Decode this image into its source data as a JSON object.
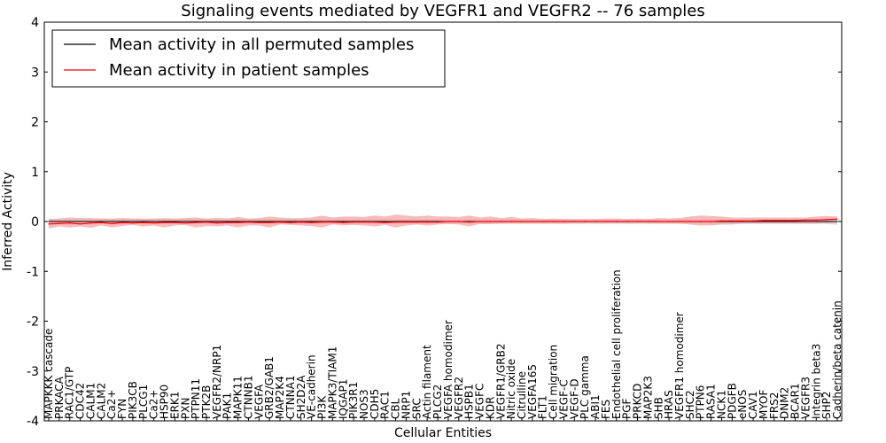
{
  "chart_data": {
    "type": "line",
    "title": "Signaling events mediated by VEGFR1 and VEGFR2 -- 76 samples",
    "xlabel": "Cellular Entities",
    "ylabel": "Inferred Activity",
    "ylim": [
      -4,
      4
    ],
    "yticks": [
      "-4",
      "-3",
      "-2",
      "-1",
      "0",
      "1",
      "2",
      "3",
      "4"
    ],
    "legend": {
      "placement": "top-left",
      "entries": [
        {
          "label": "Mean activity in all permuted samples",
          "color": "#000000"
        },
        {
          "label": "Mean activity in patient samples",
          "color": "#ff0000"
        }
      ]
    },
    "colors": {
      "patient": "#ff0000",
      "patient_band": "#f4a6a6",
      "permuted": "#000000",
      "permuted_band": "#c8c8d8"
    },
    "categories": [
      "MAPKKK cascade",
      "PRKACA",
      "RAC1/GTP",
      "CDC42",
      "CALM1",
      "CALM2",
      "Ca2+",
      "FYN",
      "PIK3CB",
      "PLCG1",
      "Ca2+",
      "HSP90",
      "ERK1",
      "PXN",
      "PTPN11",
      "PTK2B",
      "VEGFR2/NRP1",
      "PAK1",
      "MAPK11",
      "CTNNB1",
      "VEGFA",
      "GRB2/GAB1",
      "MAP2K4",
      "CTNNA1",
      "SH2D2A",
      "VE-cadherin",
      "PI3K",
      "MAPK3/TIAM1",
      "IQGAP1",
      "PIK3R1",
      "NOS3",
      "CDH5",
      "RAC1",
      "CBL",
      "NRP1",
      "SRC",
      "Actin filament",
      "PLCG2",
      "VEGFA homodimer",
      "VEGFR2",
      "HSPB1",
      "VEGFC",
      "KDR",
      "VEGFR1/GRB2",
      "Nitric oxide",
      "Citrulline",
      "VEGFA165",
      "FLT1",
      "Cell migration",
      "VEGF-C",
      "VEGF-D",
      "PLC gamma",
      "ABI1",
      "FES",
      "Endothelial cell proliferation",
      "PGF",
      "PRKCD",
      "MAP2K3",
      "SHB",
      "HRAS",
      "VEGFR1 homodimer",
      "SHC2",
      "PTPN6",
      "RASA1",
      "NCK1",
      "PDGFB",
      "eNOS",
      "CAV1",
      "MYOF",
      "FRS2",
      "DNM2",
      "BCAR1",
      "VEGFR3",
      "Integrin beta3",
      "SHP2",
      "Cadherin/beta catenin"
    ],
    "series": [
      {
        "name": "Mean activity in all permuted samples",
        "values": [
          0,
          0,
          0,
          0,
          0,
          0,
          0,
          0,
          0,
          0,
          0,
          0,
          0,
          0,
          0,
          0,
          0,
          0,
          0,
          0,
          0,
          0,
          0,
          0,
          0,
          0,
          0,
          0,
          0,
          0,
          0,
          0,
          0,
          0,
          0,
          0,
          0,
          0,
          0,
          0,
          0,
          0,
          0,
          0,
          0,
          0,
          0,
          0,
          0,
          0,
          0,
          0,
          0,
          0,
          0,
          0,
          0,
          0,
          0,
          0,
          0,
          0,
          0,
          0,
          0,
          0,
          0,
          0,
          0,
          0,
          0,
          0,
          0,
          0,
          0,
          0
        ],
        "lower": [
          -0.07,
          -0.06,
          -0.07,
          -0.06,
          -0.06,
          -0.05,
          -0.06,
          -0.06,
          -0.05,
          -0.06,
          -0.06,
          -0.05,
          -0.05,
          -0.06,
          -0.05,
          -0.05,
          -0.06,
          -0.05,
          -0.05,
          -0.05,
          -0.05,
          -0.05,
          -0.05,
          -0.05,
          -0.05,
          -0.05,
          -0.05,
          -0.05,
          -0.05,
          -0.05,
          -0.05,
          -0.05,
          -0.05,
          -0.05,
          -0.05,
          -0.05,
          -0.05,
          -0.05,
          -0.05,
          -0.05,
          -0.05,
          -0.05,
          -0.05,
          -0.05,
          -0.05,
          -0.05,
          -0.05,
          -0.05,
          -0.05,
          -0.05,
          -0.05,
          -0.05,
          -0.05,
          -0.05,
          -0.05,
          -0.05,
          -0.05,
          -0.05,
          -0.05,
          -0.05,
          -0.05,
          -0.05,
          -0.05,
          -0.05,
          -0.05,
          -0.05,
          -0.05,
          -0.05,
          -0.05,
          -0.05,
          -0.05,
          -0.05,
          -0.05,
          -0.05,
          -0.05,
          -0.07
        ],
        "upper": [
          0.05,
          0.05,
          0.05,
          0.05,
          0.05,
          0.05,
          0.05,
          0.05,
          0.05,
          0.05,
          0.05,
          0.05,
          0.05,
          0.05,
          0.05,
          0.05,
          0.05,
          0.05,
          0.05,
          0.05,
          0.05,
          0.05,
          0.05,
          0.05,
          0.05,
          0.05,
          0.05,
          0.05,
          0.05,
          0.05,
          0.05,
          0.05,
          0.05,
          0.05,
          0.05,
          0.05,
          0.05,
          0.05,
          0.05,
          0.05,
          0.05,
          0.05,
          0.05,
          0.05,
          0.05,
          0.05,
          0.05,
          0.05,
          0.05,
          0.05,
          0.05,
          0.05,
          0.05,
          0.05,
          0.05,
          0.05,
          0.05,
          0.05,
          0.05,
          0.05,
          0.05,
          0.05,
          0.05,
          0.05,
          0.05,
          0.05,
          0.05,
          0.05,
          0.05,
          0.05,
          0.05,
          0.05,
          0.05,
          0.05,
          0.05,
          0.06
        ]
      },
      {
        "name": "Mean activity in patient samples",
        "values": [
          -0.05,
          -0.04,
          -0.03,
          -0.05,
          -0.03,
          -0.02,
          -0.04,
          -0.02,
          -0.03,
          -0.02,
          -0.03,
          -0.02,
          -0.02,
          -0.03,
          -0.02,
          -0.01,
          -0.03,
          -0.02,
          -0.02,
          -0.01,
          -0.02,
          -0.02,
          -0.01,
          -0.02,
          -0.01,
          -0.02,
          -0.01,
          -0.01,
          -0.02,
          -0.01,
          -0.01,
          -0.01,
          -0.02,
          -0.01,
          -0.01,
          -0.01,
          -0.01,
          -0.01,
          0.0,
          0.0,
          -0.01,
          0.0,
          0.0,
          0.0,
          0.0,
          0.0,
          0.0,
          0.0,
          0.0,
          0.0,
          0.0,
          0.0,
          0.0,
          0.0,
          0.0,
          0.0,
          0.0,
          0.0,
          0.0,
          0.0,
          0.0,
          0.0,
          0.0,
          0.0,
          0.01,
          0.01,
          0.01,
          0.01,
          0.02,
          0.02,
          0.02,
          0.02,
          0.03,
          0.03,
          0.04,
          0.05
        ],
        "lower": [
          -0.14,
          -0.1,
          -0.12,
          -0.1,
          -0.13,
          -0.08,
          -0.12,
          -0.09,
          -0.07,
          -0.1,
          -0.08,
          -0.12,
          -0.08,
          -0.07,
          -0.12,
          -0.09,
          -0.1,
          -0.08,
          -0.12,
          -0.08,
          -0.08,
          -0.12,
          -0.06,
          -0.07,
          -0.08,
          -0.09,
          -0.12,
          -0.06,
          -0.08,
          -0.07,
          -0.08,
          -0.1,
          -0.07,
          -0.12,
          -0.08,
          -0.06,
          -0.08,
          -0.06,
          -0.05,
          -0.06,
          -0.1,
          -0.05,
          -0.05,
          -0.04,
          -0.04,
          -0.04,
          -0.04,
          -0.04,
          -0.04,
          -0.04,
          -0.03,
          -0.03,
          -0.03,
          -0.03,
          -0.03,
          -0.03,
          -0.03,
          -0.03,
          -0.04,
          -0.04,
          -0.04,
          -0.06,
          -0.08,
          -0.08,
          -0.06,
          -0.06,
          -0.04,
          -0.04,
          -0.04,
          -0.04,
          -0.04,
          -0.04,
          -0.04,
          -0.04,
          -0.03,
          -0.02
        ],
        "upper": [
          0.05,
          0.06,
          0.08,
          0.07,
          0.07,
          0.06,
          0.06,
          0.07,
          0.06,
          0.06,
          0.06,
          0.07,
          0.06,
          0.07,
          0.08,
          0.06,
          0.07,
          0.06,
          0.09,
          0.06,
          0.07,
          0.1,
          0.08,
          0.07,
          0.07,
          0.08,
          0.12,
          0.08,
          0.1,
          0.1,
          0.09,
          0.12,
          0.1,
          0.14,
          0.12,
          0.1,
          0.12,
          0.1,
          0.1,
          0.09,
          0.12,
          0.08,
          0.1,
          0.07,
          0.09,
          0.06,
          0.07,
          0.05,
          0.06,
          0.05,
          0.05,
          0.05,
          0.05,
          0.06,
          0.06,
          0.05,
          0.06,
          0.05,
          0.07,
          0.06,
          0.07,
          0.1,
          0.12,
          0.11,
          0.1,
          0.08,
          0.08,
          0.08,
          0.08,
          0.08,
          0.08,
          0.08,
          0.08,
          0.1,
          0.11,
          0.1
        ]
      }
    ]
  }
}
